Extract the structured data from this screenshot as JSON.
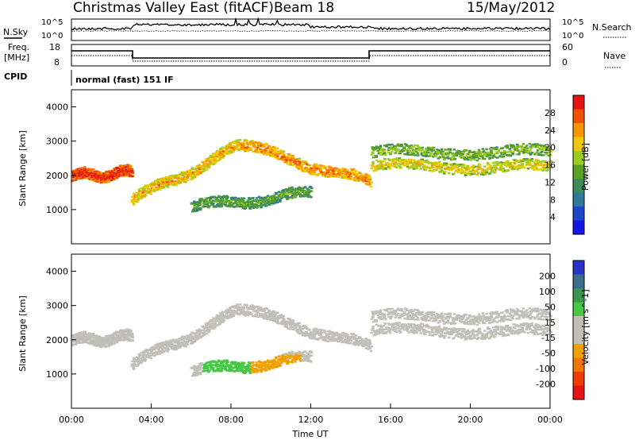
{
  "header": {
    "station": "Christmas Valley East (fitACF)",
    "beam": "Beam 18",
    "date": "15/May/2012"
  },
  "top_panels": {
    "nsky_label": "N.Sky",
    "nsky_ticks": [
      "10^5",
      "10^0"
    ],
    "nsearch_label": "N.Search",
    "nsearch_ticks": [
      "10^5",
      "10^0"
    ],
    "freq_label_line1": "Freq.",
    "freq_label_line2": "[MHz]",
    "freq_ticks": [
      "18",
      "8"
    ],
    "nave_label": "Nave",
    "nave_ticks": [
      "60",
      "0"
    ],
    "cpid_label": "CPID",
    "cpid_value": "normal (fast) 151 IF"
  },
  "x_axis": {
    "label": "Time UT",
    "ticks": [
      "00:00",
      "04:00",
      "08:00",
      "12:00",
      "16:00",
      "20:00",
      "00:00"
    ]
  },
  "colors": {
    "power_scale": [
      "#1414e6",
      "#1e46c8",
      "#2d7a99",
      "#3c8c5a",
      "#5aa028",
      "#9ccc1e",
      "#f0c800",
      "#f59600",
      "#f05000",
      "#e61414"
    ],
    "velocity_scale": [
      "#2832c8",
      "#3c6e8c",
      "#3c9650",
      "#46c846",
      "#c0c0b8",
      "#c0c0b8",
      "#f0a000",
      "#f07800",
      "#f03c00",
      "#e61414"
    ],
    "ground_scatter": "#b4b4b4"
  },
  "chart_data": [
    {
      "type": "heatmap",
      "title": "Power",
      "xlabel": "Time UT",
      "ylabel": "Slant Range [km]",
      "xlim": [
        0,
        24
      ],
      "ylim": [
        0,
        4500
      ],
      "y_ticks": [
        "1000",
        "2000",
        "3000",
        "4000"
      ],
      "colorbar": {
        "label": "Power [dB]",
        "ticks": [
          "4",
          "8",
          "12",
          "16",
          "20",
          "24",
          "28"
        ],
        "range": [
          0,
          30
        ]
      },
      "echo_bands": [
        {
          "x": [
            0,
            3
          ],
          "y": [
            2000,
            2100
          ],
          "value": 28
        },
        {
          "x": [
            3,
            8.5
          ],
          "y": [
            1300,
            2900
          ],
          "value": 22
        },
        {
          "x": [
            8.5,
            15
          ],
          "y": [
            2900,
            1800
          ],
          "value": 24
        },
        {
          "x": [
            15,
            24
          ],
          "y": [
            2300,
            2250
          ],
          "value": 20
        },
        {
          "x": [
            6,
            12
          ],
          "y": [
            1100,
            1500
          ],
          "value": 14
        },
        {
          "x": [
            15,
            24
          ],
          "y": [
            2700,
            2700
          ],
          "value": 16
        }
      ]
    },
    {
      "type": "heatmap",
      "title": "Velocity",
      "xlabel": "Time UT",
      "ylabel": "Slant Range [km]",
      "xlim": [
        0,
        24
      ],
      "ylim": [
        0,
        4500
      ],
      "y_ticks": [
        "1000",
        "2000",
        "3000",
        "4000"
      ],
      "colorbar": {
        "label": "Velocity [m s^-1]",
        "ticks": [
          "200",
          "100",
          "50",
          "15",
          "-15",
          "-50",
          "-100",
          "-200"
        ],
        "range": [
          -250,
          250
        ]
      },
      "features": [
        {
          "x": [
            6.5,
            11.5
          ],
          "y": [
            1100,
            1500
          ],
          "value_west": 60,
          "value_mid": -50
        },
        {
          "x": [
            0,
            24
          ],
          "y": [
            1800,
            3000
          ],
          "value": 0
        }
      ]
    }
  ]
}
